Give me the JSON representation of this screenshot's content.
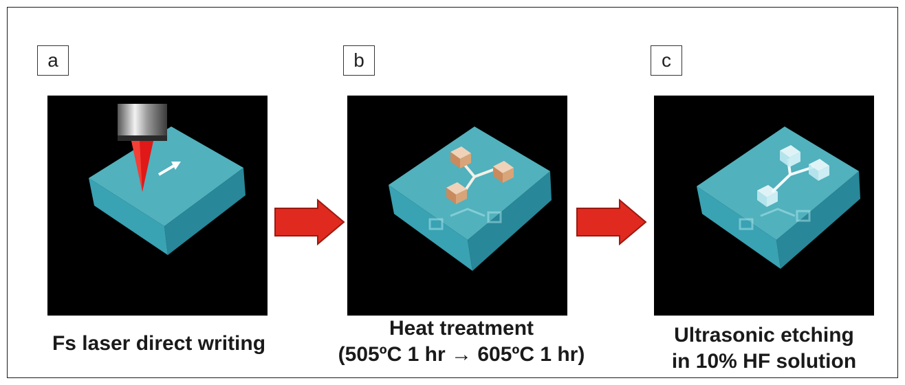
{
  "panels": [
    {
      "label": "a",
      "caption_lines": [
        "Fs laser direct writing"
      ]
    },
    {
      "label": "b",
      "caption_lines": [
        "Heat treatment",
        "(505ºC 1 hr → 605ºC 1 hr)"
      ]
    },
    {
      "label": "c",
      "caption_lines": [
        "Ultrasonic etching",
        "in 10%  HF solution"
      ]
    }
  ],
  "colors": {
    "glass_top": "#5fd0de",
    "glass_front": "#3fb4c6",
    "glass_side": "#2c96a8",
    "laser": "#e01818",
    "arrow": "#e02a20",
    "pad_heat": "#d9a478",
    "pad_etch": "#d8f4f8"
  },
  "icons": [
    "laser-head-icon",
    "process-arrow-icon"
  ]
}
